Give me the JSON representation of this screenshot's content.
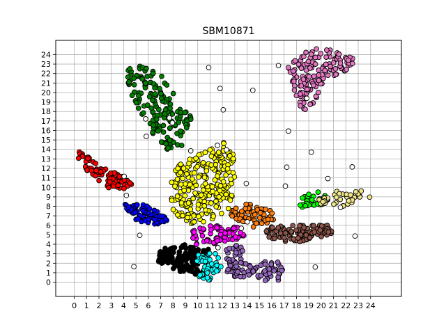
{
  "chart_data": {
    "type": "scatter",
    "title": "SBM10871",
    "xlabel": "",
    "ylabel": "",
    "xlim": [
      -1.5,
      26.5
    ],
    "ylim": [
      -1.5,
      25.5
    ],
    "grid": true,
    "x_ticks": [
      0,
      1,
      2,
      3,
      4,
      5,
      6,
      7,
      8,
      9,
      10,
      11,
      12,
      13,
      14,
      15,
      16,
      17,
      18,
      19,
      20,
      21,
      22,
      23,
      24
    ],
    "y_ticks": [
      0,
      1,
      2,
      3,
      4,
      5,
      6,
      7,
      8,
      9,
      10,
      11,
      12,
      13,
      14,
      15,
      16,
      17,
      18,
      19,
      20,
      21,
      22,
      23,
      24
    ],
    "point_edge_color": "#000000",
    "clusters": [
      {
        "name": "red",
        "color": "#ff0000",
        "polygon": [
          [
            0,
            14
          ],
          [
            1.5,
            13
          ],
          [
            3,
            11.8
          ],
          [
            4.3,
            10.8
          ],
          [
            4.8,
            10.2
          ],
          [
            4,
            9.8
          ],
          [
            2.5,
            10
          ],
          [
            1,
            11.8
          ],
          [
            0.2,
            13.2
          ]
        ],
        "count": 90
      },
      {
        "name": "blue",
        "color": "#0000ff",
        "polygon": [
          [
            4,
            8.4
          ],
          [
            5.5,
            8.3
          ],
          [
            7,
            7.3
          ],
          [
            7.7,
            6.6
          ],
          [
            6.5,
            6
          ],
          [
            5.2,
            6.3
          ],
          [
            4.3,
            7.4
          ]
        ],
        "count": 80
      },
      {
        "name": "green",
        "color": "#008000",
        "polygon": [
          [
            4.5,
            23
          ],
          [
            6.5,
            22.8
          ],
          [
            8,
            20
          ],
          [
            9.5,
            17.5
          ],
          [
            9,
            14.5
          ],
          [
            7.5,
            14
          ],
          [
            6,
            15.5
          ],
          [
            4.8,
            19
          ],
          [
            4.2,
            21.5
          ]
        ],
        "count": 160
      },
      {
        "name": "yellow",
        "color": "#ffff00",
        "polygon": [
          [
            8,
            12
          ],
          [
            10,
            13.5
          ],
          [
            12.5,
            15
          ],
          [
            13,
            13
          ],
          [
            13,
            9.5
          ],
          [
            12.5,
            7.5
          ],
          [
            11,
            6.5
          ],
          [
            9,
            6
          ],
          [
            7.8,
            8
          ],
          [
            7.8,
            10
          ]
        ],
        "count": 260
      },
      {
        "name": "orange",
        "color": "#ff7f0e",
        "polygon": [
          [
            12.5,
            7.5
          ],
          [
            14,
            8.3
          ],
          [
            16,
            7.5
          ],
          [
            16.3,
            6.5
          ],
          [
            14.5,
            5.8
          ],
          [
            13,
            6.5
          ]
        ],
        "count": 70
      },
      {
        "name": "magenta",
        "color": "#ff00ff",
        "polygon": [
          [
            9.5,
            5.5
          ],
          [
            11,
            6
          ],
          [
            13.5,
            5.8
          ],
          [
            13.8,
            4.8
          ],
          [
            12,
            4
          ],
          [
            10,
            3.8
          ],
          [
            9.3,
            4.5
          ]
        ],
        "count": 70
      },
      {
        "name": "black",
        "color": "#000000",
        "polygon": [
          [
            7,
            3.5
          ],
          [
            9,
            4
          ],
          [
            11,
            3.5
          ],
          [
            11.5,
            2
          ],
          [
            10,
            0.8
          ],
          [
            8,
            1.2
          ],
          [
            6.8,
            2.2
          ]
        ],
        "count": 130
      },
      {
        "name": "cyan",
        "color": "#00ffff",
        "polygon": [
          [
            10,
            3.2
          ],
          [
            11.5,
            3
          ],
          [
            12,
            1.8
          ],
          [
            11,
            0.2
          ],
          [
            10,
            0.3
          ],
          [
            9.7,
            1.5
          ]
        ],
        "count": 50
      },
      {
        "name": "purple",
        "color": "#9467bd",
        "polygon": [
          [
            12.2,
            3.5
          ],
          [
            13.5,
            4
          ],
          [
            14,
            2
          ],
          [
            16,
            2.5
          ],
          [
            17,
            1.8
          ],
          [
            16.8,
            0
          ],
          [
            14.5,
            0.2
          ],
          [
            12.3,
            0.8
          ]
        ],
        "count": 100
      },
      {
        "name": "brown",
        "color": "#8c564b",
        "polygon": [
          [
            15.5,
            5.8
          ],
          [
            17.5,
            6
          ],
          [
            21,
            6
          ],
          [
            20.8,
            5
          ],
          [
            18,
            4.2
          ],
          [
            16.5,
            4.3
          ],
          [
            15.3,
            5
          ]
        ],
        "count": 110
      },
      {
        "name": "lime",
        "color": "#00ff00",
        "polygon": [
          [
            18,
            8.5
          ],
          [
            19.5,
            9.8
          ],
          [
            20.5,
            9
          ],
          [
            20.3,
            8
          ],
          [
            18.5,
            7.8
          ]
        ],
        "count": 30
      },
      {
        "name": "khaki",
        "color": "#f0e68c",
        "polygon": [
          [
            19.5,
            8.5
          ],
          [
            21,
            9.5
          ],
          [
            23,
            10
          ],
          [
            24,
            9
          ],
          [
            22,
            8
          ],
          [
            20,
            7.8
          ]
        ],
        "count": 40
      },
      {
        "name": "pink",
        "color": "#e377c2",
        "polygon": [
          [
            17.3,
            22.8
          ],
          [
            19,
            24.5
          ],
          [
            21,
            25
          ],
          [
            23,
            23.5
          ],
          [
            22,
            22
          ],
          [
            20.5,
            21.5
          ],
          [
            19.5,
            19
          ],
          [
            18.5,
            18
          ],
          [
            17.8,
            20
          ]
        ],
        "count": 140
      },
      {
        "name": "unassigned",
        "color": "#ffffff",
        "polygon": [
          [
            3,
            8.5
          ],
          [
            24.5,
            8.5
          ],
          [
            24.5,
            9.5
          ],
          [
            3,
            9.5
          ]
        ],
        "count": 30
      }
    ]
  }
}
